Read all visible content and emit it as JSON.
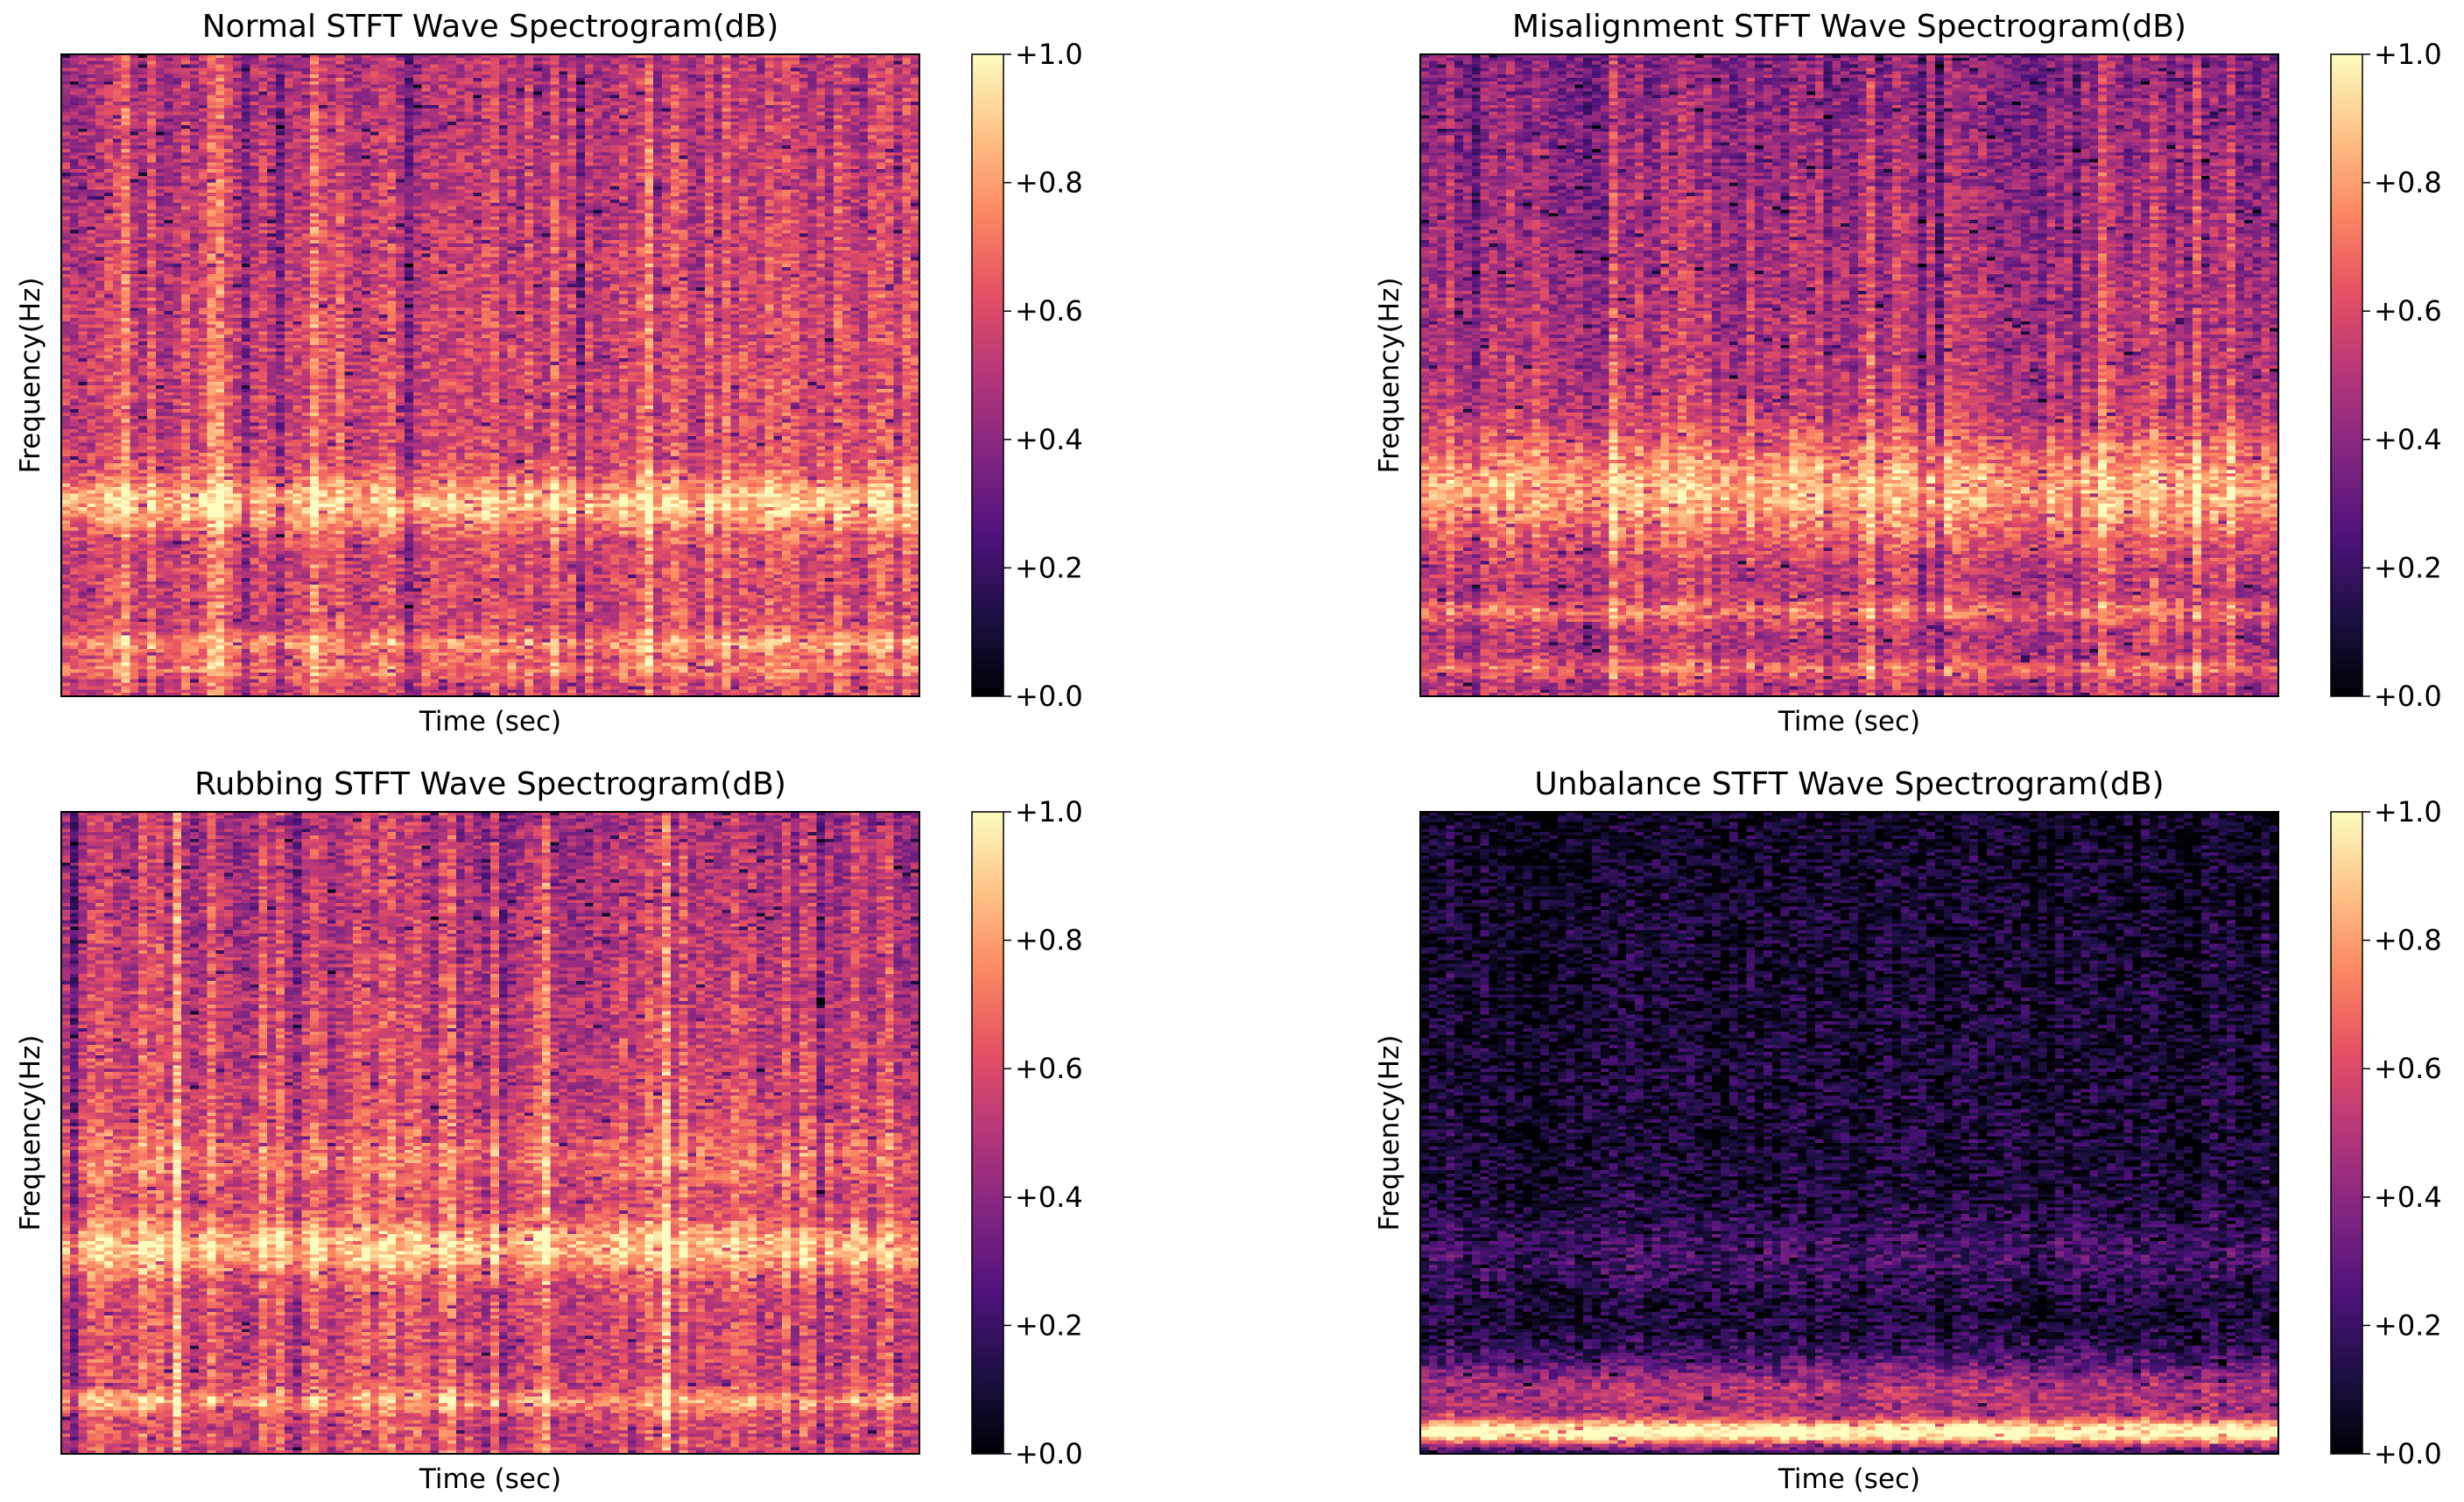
{
  "chart_data": [
    {
      "type": "heatmap",
      "title": "Normal STFT Wave Spectrogram(dB)",
      "xlabel": "Time (sec)",
      "ylabel": "Frequency(Hz)",
      "colormap": "magma",
      "colorbar": {
        "ticks": [
          "+0.0",
          "+0.2",
          "+0.4",
          "+0.6",
          "+0.8",
          "+1.0"
        ],
        "range": [
          0,
          1
        ]
      },
      "profile": {
        "base": 0.6,
        "bands": [
          {
            "pos": 0.3,
            "width": 0.03,
            "amp": 0.3
          },
          {
            "pos": 0.08,
            "width": 0.012,
            "amp": 0.22
          },
          {
            "pos": 0.04,
            "width": 0.01,
            "amp": 0.15
          }
        ],
        "topDip": 0.08,
        "timeVar": 0.12,
        "seed": 11
      }
    },
    {
      "type": "heatmap",
      "title": "Misalignment STFT Wave Spectrogram(dB)",
      "xlabel": "Time (sec)",
      "ylabel": "Frequency(Hz)",
      "colormap": "magma",
      "colorbar": {
        "ticks": [
          "+0.0",
          "+0.2",
          "+0.4",
          "+0.6",
          "+0.8",
          "+1.0"
        ],
        "range": [
          0,
          1
        ]
      },
      "profile": {
        "base": 0.52,
        "bands": [
          {
            "pos": 0.32,
            "width": 0.06,
            "amp": 0.32
          },
          {
            "pos": 0.13,
            "width": 0.012,
            "amp": 0.2
          },
          {
            "pos": 0.04,
            "width": 0.01,
            "amp": 0.18
          }
        ],
        "topDip": 0.12,
        "timeVar": 0.1,
        "seed": 23
      }
    },
    {
      "type": "heatmap",
      "title": "Rubbing STFT Wave Spectrogram(dB)",
      "xlabel": "Time (sec)",
      "ylabel": "Frequency(Hz)",
      "colormap": "magma",
      "colorbar": {
        "ticks": [
          "+0.0",
          "+0.2",
          "+0.4",
          "+0.6",
          "+0.8",
          "+1.0"
        ],
        "range": [
          0,
          1
        ]
      },
      "profile": {
        "base": 0.6,
        "bands": [
          {
            "pos": 0.32,
            "width": 0.03,
            "amp": 0.3
          },
          {
            "pos": 0.46,
            "width": 0.03,
            "amp": 0.12
          },
          {
            "pos": 0.08,
            "width": 0.012,
            "amp": 0.22
          }
        ],
        "topDip": 0.1,
        "timeVar": 0.14,
        "seed": 37
      }
    },
    {
      "type": "heatmap",
      "title": "Unbalance STFT Wave Spectrogram(dB)",
      "xlabel": "Time (sec)",
      "ylabel": "Frequency(Hz)",
      "colormap": "magma",
      "colorbar": {
        "ticks": [
          "+0.0",
          "+0.2",
          "+0.4",
          "+0.6",
          "+0.8",
          "+1.0"
        ],
        "range": [
          0,
          1
        ]
      },
      "profile": {
        "base": 0.1,
        "bands": [
          {
            "pos": 0.03,
            "width": 0.015,
            "amp": 0.85
          },
          {
            "pos": 0.09,
            "width": 0.04,
            "amp": 0.4
          },
          {
            "pos": 0.31,
            "width": 0.04,
            "amp": 0.12
          }
        ],
        "topDip": 0.03,
        "timeVar": 0.05,
        "seed": 53
      }
    }
  ]
}
